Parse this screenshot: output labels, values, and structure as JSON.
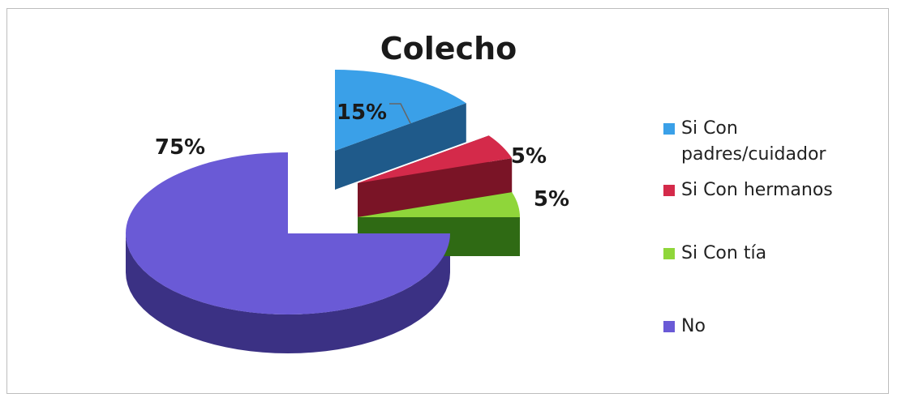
{
  "chart_data": {
    "type": "pie",
    "variant": "3d-exploded",
    "title": "Colecho",
    "legend_position": "right",
    "slices": [
      {
        "name": "Si Con padres/cuidador",
        "value": 15,
        "label": "15%",
        "color": "#3aa0e8",
        "side_color": "#1f5a8a"
      },
      {
        "name": "Si Con hermanos",
        "value": 5,
        "label": "5%",
        "color": "#d42a4a",
        "side_color": "#7a1426"
      },
      {
        "name": "Si Con tía",
        "value": 5,
        "label": "5%",
        "color": "#8fd63a",
        "side_color": "#2f6a14"
      },
      {
        "name": "No",
        "value": 75,
        "label": "75%",
        "color": "#6a5ad6",
        "side_color": "#3b3184"
      }
    ]
  }
}
